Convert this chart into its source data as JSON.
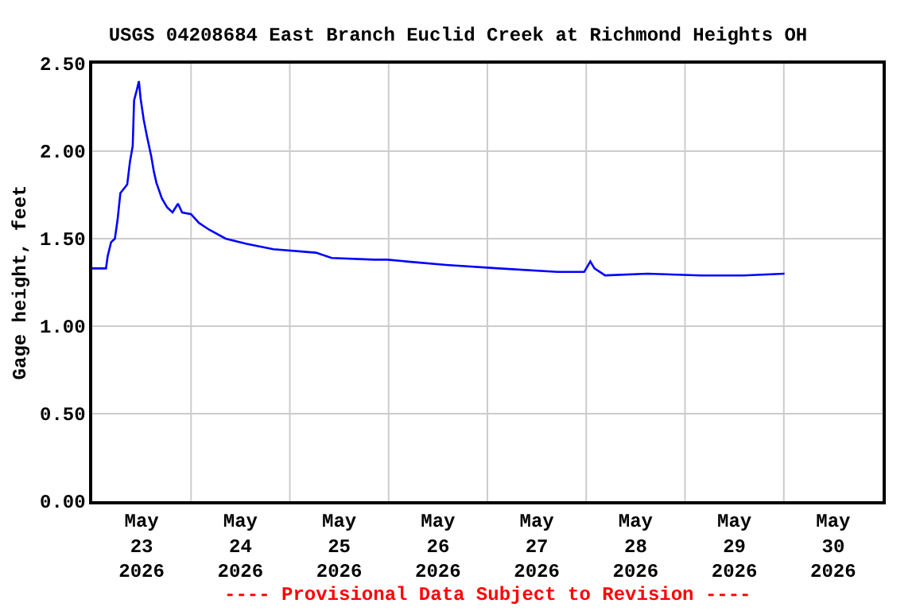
{
  "chart_data": {
    "type": "line",
    "title": "USGS 04208684 East Branch Euclid Creek at Richmond Heights OH",
    "ylabel": "Gage height, feet",
    "annotations": [
      "---- Provisional Data Subject to Revision ----"
    ],
    "x": [
      "2026-05-23T00:00",
      "2026-05-23T03:20",
      "2026-05-23T03:45",
      "2026-05-23T04:35",
      "2026-05-23T05:30",
      "2026-05-23T06:10",
      "2026-05-23T06:50",
      "2026-05-23T07:50",
      "2026-05-23T08:30",
      "2026-05-23T09:10",
      "2026-05-23T09:50",
      "2026-05-23T10:10",
      "2026-05-23T10:50",
      "2026-05-23T11:20",
      "2026-05-23T11:45",
      "2026-05-23T12:30",
      "2026-05-23T13:15",
      "2026-05-23T14:20",
      "2026-05-23T15:00",
      "2026-05-23T15:35",
      "2026-05-23T16:55",
      "2026-05-23T18:10",
      "2026-05-23T19:30",
      "2026-05-23T20:50",
      "2026-05-23T21:50",
      "2026-05-24T00:00",
      "2026-05-24T01:55",
      "2026-05-24T04:30",
      "2026-05-24T08:25",
      "2026-05-24T13:30",
      "2026-05-24T20:00",
      "2026-05-25T06:20",
      "2026-05-25T10:10",
      "2026-05-25T20:30",
      "2026-05-25T23:45",
      "2026-05-26T04:15",
      "2026-05-26T13:55",
      "2026-05-27T02:50",
      "2026-05-27T17:00",
      "2026-05-27T23:30",
      "2026-05-28T01:00",
      "2026-05-28T02:00",
      "2026-05-28T04:35",
      "2026-05-28T14:55",
      "2026-05-29T03:50",
      "2026-05-29T14:10",
      "2026-05-30T00:10"
    ],
    "series": [
      {
        "color": "#0000ff",
        "values": [
          1.33,
          1.33,
          1.4,
          1.48,
          1.5,
          1.61,
          1.76,
          1.79,
          1.81,
          1.94,
          2.03,
          2.29,
          2.35,
          2.4,
          2.3,
          2.18,
          2.09,
          1.97,
          1.88,
          1.82,
          1.73,
          1.68,
          1.65,
          1.7,
          1.65,
          1.64,
          1.59,
          1.55,
          1.5,
          1.47,
          1.44,
          1.42,
          1.39,
          1.38,
          1.38,
          1.37,
          1.35,
          1.33,
          1.31,
          1.31,
          1.37,
          1.33,
          1.29,
          1.3,
          1.29,
          1.29,
          1.3
        ]
      }
    ],
    "xlim": [
      "2026-05-23T00:00",
      "2026-05-31T00:00"
    ],
    "xticks": [
      {
        "value": "2026-05-23T12:00",
        "label": "May\n23\n2026"
      },
      {
        "value": "2026-05-24T12:00",
        "label": "May\n24\n2026"
      },
      {
        "value": "2026-05-25T12:00",
        "label": "May\n25\n2026"
      },
      {
        "value": "2026-05-26T12:00",
        "label": "May\n26\n2026"
      },
      {
        "value": "2026-05-27T12:00",
        "label": "May\n27\n2026"
      },
      {
        "value": "2026-05-28T12:00",
        "label": "May\n28\n2026"
      },
      {
        "value": "2026-05-29T12:00",
        "label": "May\n29\n2026"
      },
      {
        "value": "2026-05-30T12:00",
        "label": "May\n30\n2026"
      },
      {
        "value": "2026-05-24T00:00",
        "label": null
      },
      {
        "value": "2026-05-25T00:00",
        "label": null
      },
      {
        "value": "2026-05-26T00:00",
        "label": null
      },
      {
        "value": "2026-05-27T00:00",
        "label": null
      },
      {
        "value": "2026-05-28T00:00",
        "label": null
      },
      {
        "value": "2026-05-29T00:00",
        "label": null
      },
      {
        "value": "2026-05-30T00:00",
        "label": null
      }
    ],
    "ylim": [
      0,
      2.5
    ],
    "yticks": [
      {
        "value": 0,
        "label": "0.00"
      },
      {
        "value": 0.5,
        "label": "0.50"
      },
      {
        "value": 1,
        "label": "1.00"
      },
      {
        "value": 1.5,
        "label": "1.50"
      },
      {
        "value": 2,
        "label": "2.00"
      },
      {
        "value": 2.5,
        "label": "2.50"
      }
    ],
    "grid": true,
    "marker": "none",
    "line_style": "solid"
  }
}
